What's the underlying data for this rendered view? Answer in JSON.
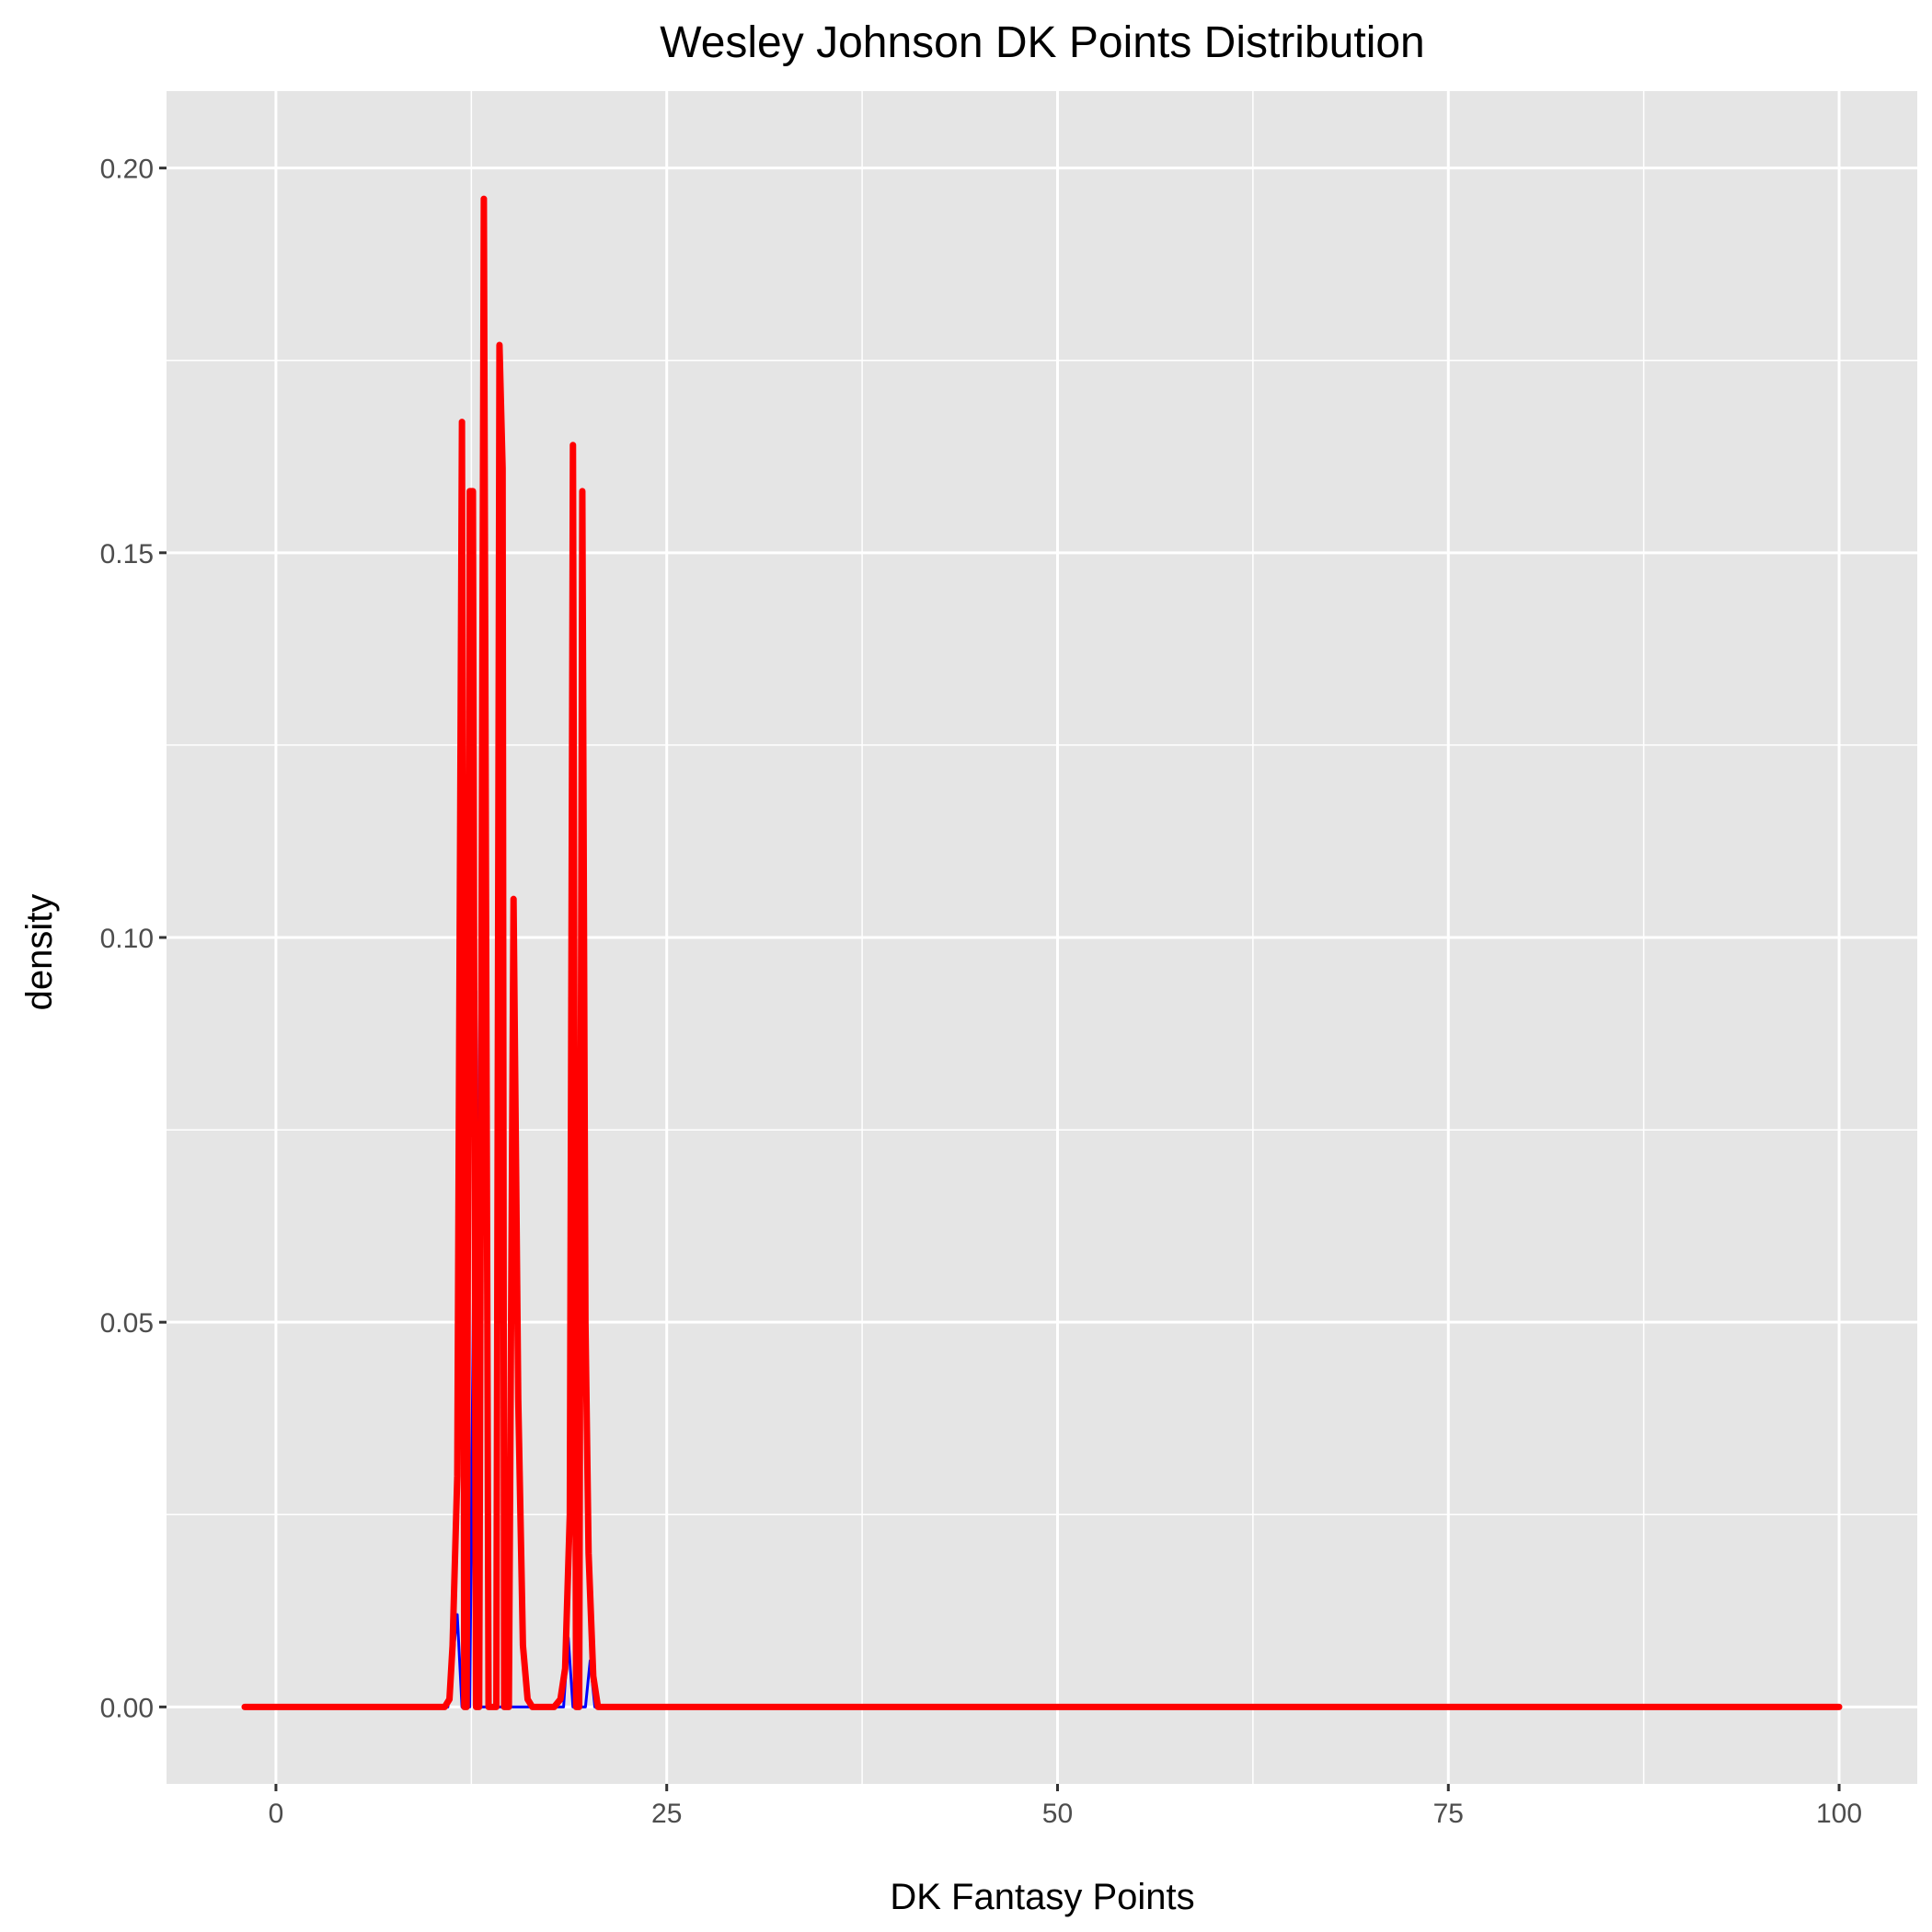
{
  "chart_data": {
    "type": "line",
    "title": "Wesley Johnson DK Points Distribution",
    "xlabel": "DK Fantasy Points",
    "ylabel": "density",
    "xlim": [
      -7,
      105
    ],
    "ylim": [
      -0.01,
      0.21
    ],
    "x_ticks": [
      0,
      25,
      50,
      75,
      100
    ],
    "x_tick_labels": [
      "0",
      "25",
      "50",
      "75",
      "100"
    ],
    "y_ticks": [
      0.0,
      0.05,
      0.1,
      0.15,
      0.2
    ],
    "y_tick_labels": [
      "0.00",
      "0.05",
      "0.10",
      "0.15",
      "0.20"
    ],
    "grid": true,
    "panel_background": "#e5e5e5",
    "grid_color": "#ffffff",
    "series": [
      {
        "color": "#0000ff",
        "points": [
          [
            -2,
            0
          ],
          [
            11.0,
            0
          ],
          [
            11.6,
            0.012
          ],
          [
            11.9,
            0
          ],
          [
            12.4,
            0
          ],
          [
            12.8,
            0.093
          ],
          [
            13.0,
            0
          ],
          [
            18.4,
            0
          ],
          [
            18.7,
            0.009
          ],
          [
            19.0,
            0
          ],
          [
            19.8,
            0
          ],
          [
            20.1,
            0.006
          ],
          [
            20.4,
            0
          ],
          [
            100,
            0
          ]
        ]
      },
      {
        "color": "#ff0000",
        "points": [
          [
            -2,
            0
          ],
          [
            10.8,
            0
          ],
          [
            11.1,
            0.001
          ],
          [
            11.3,
            0.008
          ],
          [
            11.6,
            0.03
          ],
          [
            11.9,
            0.167
          ],
          [
            12.05,
            0
          ],
          [
            12.2,
            0
          ],
          [
            12.4,
            0.158
          ],
          [
            12.6,
            0.158
          ],
          [
            12.8,
            0
          ],
          [
            13.0,
            0
          ],
          [
            13.3,
            0.196
          ],
          [
            13.6,
            0
          ],
          [
            14.1,
            0
          ],
          [
            14.3,
            0.177
          ],
          [
            14.5,
            0.161
          ],
          [
            14.6,
            0
          ],
          [
            14.9,
            0
          ],
          [
            15.2,
            0.105
          ],
          [
            15.5,
            0.04
          ],
          [
            15.8,
            0.008
          ],
          [
            16.1,
            0.001
          ],
          [
            16.4,
            0
          ],
          [
            17.8,
            0
          ],
          [
            18.2,
            0.001
          ],
          [
            18.5,
            0.005
          ],
          [
            18.8,
            0.025
          ],
          [
            19.0,
            0.164
          ],
          [
            19.2,
            0
          ],
          [
            19.4,
            0
          ],
          [
            19.6,
            0.158
          ],
          [
            19.8,
            0.05
          ],
          [
            20.0,
            0.02
          ],
          [
            20.3,
            0.004
          ],
          [
            20.6,
            0
          ],
          [
            100,
            0
          ]
        ]
      }
    ]
  }
}
